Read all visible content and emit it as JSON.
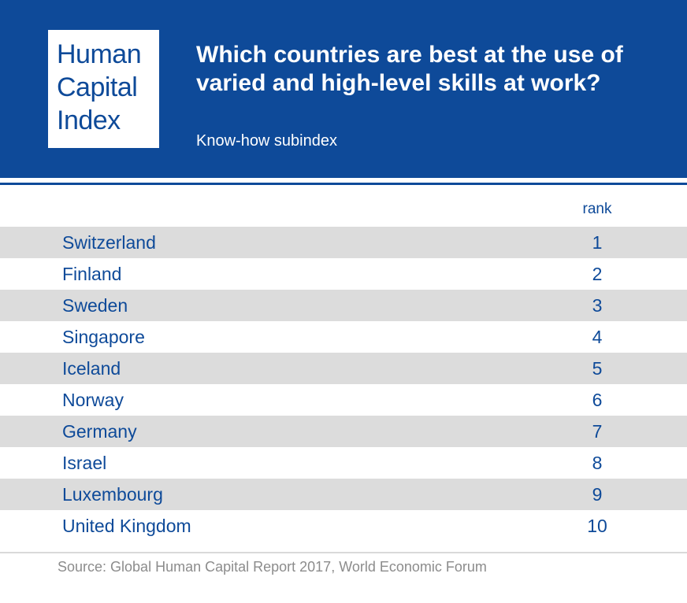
{
  "logo": {
    "lines": [
      "Human",
      "Capital",
      "Index"
    ]
  },
  "title": "Which countries are best at the use of varied and high-level skills at work?",
  "subtitle": "Know-how subindex",
  "colors": {
    "brand": "#0e4a99",
    "row_shade": "#dcdcdc",
    "source_text": "#8c8c8c"
  },
  "chart_data": {
    "type": "table",
    "title": "Which countries are best at the use of varied and high-level skills at work?",
    "subtitle": "Know-how subindex",
    "columns": [
      "",
      "rank"
    ],
    "rows": [
      {
        "country": "Switzerland",
        "rank": 1
      },
      {
        "country": "Finland",
        "rank": 2
      },
      {
        "country": "Sweden",
        "rank": 3
      },
      {
        "country": "Singapore",
        "rank": 4
      },
      {
        "country": "Iceland",
        "rank": 5
      },
      {
        "country": "Norway",
        "rank": 6
      },
      {
        "country": "Germany",
        "rank": 7
      },
      {
        "country": "Israel",
        "rank": 8
      },
      {
        "country": "Luxembourg",
        "rank": 9
      },
      {
        "country": "United Kingdom",
        "rank": 10
      }
    ]
  },
  "source": "Source: Global Human Capital Report 2017, World Economic Forum"
}
